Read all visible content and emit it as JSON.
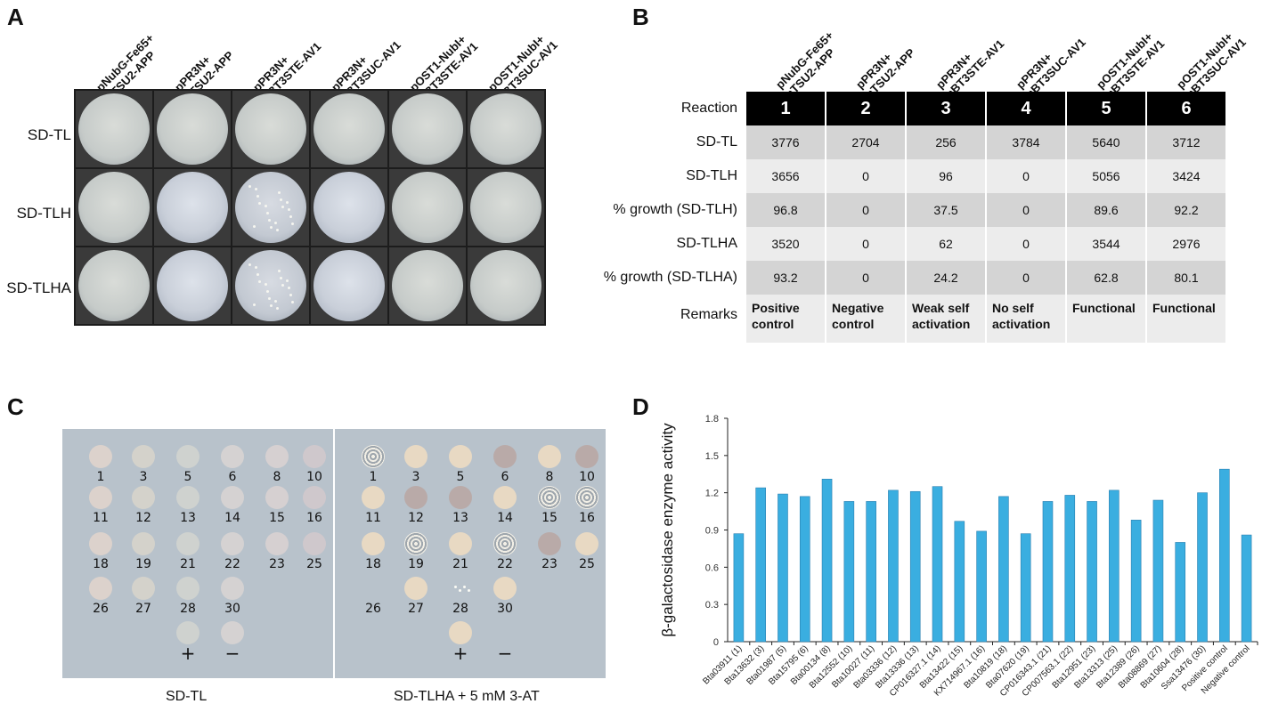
{
  "panels": {
    "A": "A",
    "B": "B",
    "C": "C",
    "D": "D"
  },
  "plasmid_labels": [
    {
      "l1": "pNubG-Fe65+",
      "l2": "pTSU2-APP"
    },
    {
      "l1": "pPR3N+",
      "l2": "pTSU2-APP"
    },
    {
      "l1": "pPR3N+",
      "l2": "pBT3STE-AV1"
    },
    {
      "l1": "pPR3N+",
      "l2": "pBT3SUC-AV1"
    },
    {
      "l1": "pOST1-NubI+",
      "l2": "pBT3STE-AV1"
    },
    {
      "l1": "pOST1-NubI+",
      "l2": "pBT3SUC-AV1"
    }
  ],
  "plate_rows": [
    "SD-TL",
    "SD-TLH",
    "SD-TLHA"
  ],
  "table": {
    "header_label": "Reaction",
    "reactions": [
      "1",
      "2",
      "3",
      "4",
      "5",
      "6"
    ],
    "rows": [
      {
        "label": "SD-TL",
        "values": [
          "3776",
          "2704",
          "256",
          "3784",
          "5640",
          "3712"
        ]
      },
      {
        "label": "SD-TLH",
        "values": [
          "3656",
          "0",
          "96",
          "0",
          "5056",
          "3424"
        ]
      },
      {
        "label": "% growth (SD-TLH)",
        "values": [
          "96.8",
          "0",
          "37.5",
          "0",
          "89.6",
          "92.2"
        ]
      },
      {
        "label": "SD-TLHA",
        "values": [
          "3520",
          "0",
          "62",
          "0",
          "3544",
          "2976"
        ]
      },
      {
        "label": "% growth (SD-TLHA)",
        "values": [
          "93.2",
          "0",
          "24.2",
          "0",
          "62.8",
          "80.1"
        ]
      }
    ],
    "remarks_label": "Remarks",
    "remarks": [
      {
        "l1": "Positive",
        "l2": "control"
      },
      {
        "l1": "Negative",
        "l2": "control"
      },
      {
        "l1": "Weak self",
        "l2": "activation"
      },
      {
        "l1": "No self",
        "l2": "activation"
      },
      {
        "l1": "Functional",
        "l2": ""
      },
      {
        "l1": "Functional",
        "l2": ""
      }
    ]
  },
  "spot_labels": [
    "1",
    "3",
    "5",
    "6",
    "8",
    "10",
    "11",
    "12",
    "13",
    "14",
    "15",
    "16",
    "18",
    "19",
    "21",
    "22",
    "23",
    "25",
    "26",
    "27",
    "28",
    "30",
    "+",
    "−"
  ],
  "captions": {
    "left": "SD-TL",
    "right": "SD-TLHA + 5 mM 3-AT"
  },
  "chart_data": {
    "type": "bar",
    "ylabel": "β-galactosidase enzyme activity",
    "xlabel": "",
    "ylim": [
      0,
      1.8
    ],
    "yticks": [
      "0",
      "0.3",
      "0.6",
      "0.9",
      "1.2",
      "1.5",
      "1.8"
    ],
    "bar_color": "#3aaee0",
    "categories": [
      "Bta03911 (1)",
      "Bta13632 (3)",
      "Bta01987 (5)",
      "Bta15795 (6)",
      "Bta00134 (8)",
      "Bta12552 (10)",
      "Bta10027 (11)",
      "Bta03336 (12)",
      "Bta13336 (13)",
      "CP016327.1 (14)",
      "Bta13422 (15)",
      "KX714967.1 (16)",
      "Bta10819 (18)",
      "Bta07620 (19)",
      "CP016343.1 (21)",
      "CP007563.1 (22)",
      "Bta12951 (23)",
      "Bta13313 (25)",
      "Bta12389 (26)",
      "Bta08869 (27)",
      "Bta10604 (28)",
      "Ssa13476 (30)",
      "Positive control",
      "Negative control"
    ],
    "values": [
      0.87,
      1.24,
      1.19,
      1.17,
      1.31,
      1.13,
      1.13,
      1.22,
      1.21,
      1.25,
      0.97,
      0.89,
      1.17,
      0.87,
      1.13,
      1.18,
      1.13,
      1.22,
      0.98,
      1.14,
      0.8,
      1.2,
      1.39,
      0.86
    ]
  }
}
